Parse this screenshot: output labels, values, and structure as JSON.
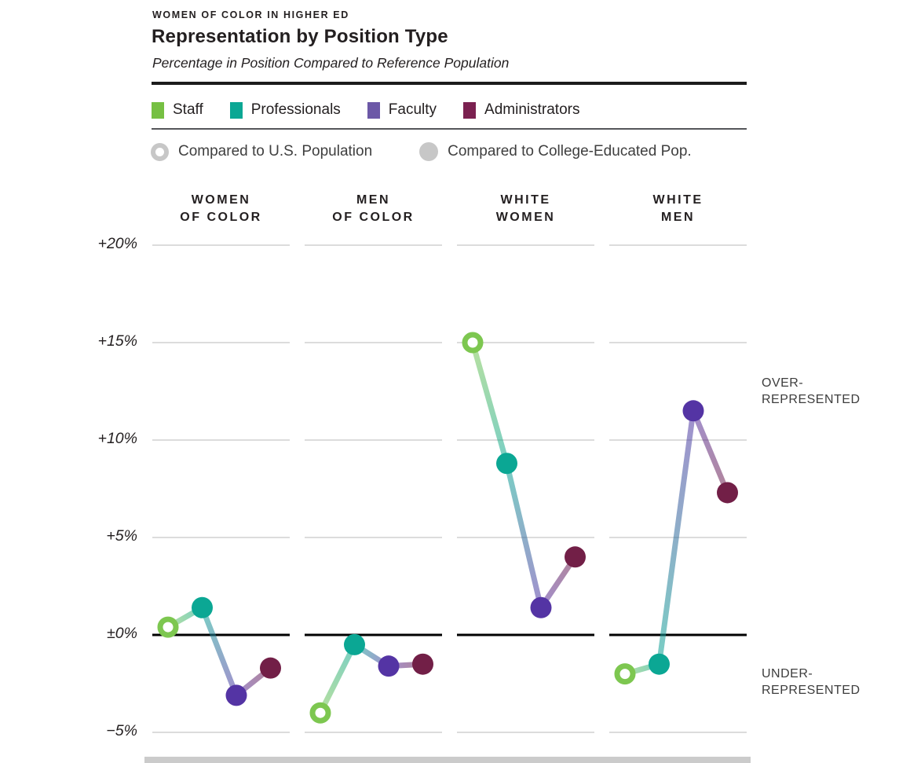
{
  "page": {
    "kicker": "WOMEN OF COLOR IN HIGHER ED",
    "title": "Representation by Position Type",
    "subtitle": "Percentage in Position Compared to Reference Population"
  },
  "legend": {
    "series": [
      {
        "label": "Staff",
        "color": "#76C043",
        "marker_color": "#7DC750"
      },
      {
        "label": "Professionals",
        "color": "#0BA794",
        "marker_color": "#0BA794"
      },
      {
        "label": "Faculty",
        "color": "#6C58A7",
        "marker_color": "#5434A4"
      },
      {
        "label": "Administrators",
        "color": "#7B2150",
        "marker_color": "#721F47"
      }
    ],
    "comparison": [
      {
        "label": "Compared to U.S. Population",
        "marker": "open",
        "color": "#C7C7C7"
      },
      {
        "label": "Compared to College-Educated Pop.",
        "marker": "filled",
        "color": "#C7C7C7"
      }
    ]
  },
  "annotations": {
    "over_line1": "OVER-",
    "over_line2": "REPRESENTED",
    "under_line1": "UNDER-",
    "under_line2": "REPRESENTED"
  },
  "chart_data": {
    "type": "line",
    "title": "Representation by Position Type",
    "subtitle": "Percentage in Position Compared to Reference Population",
    "unit": "percentage points vs. reference population",
    "positions": [
      "Staff",
      "Professionals",
      "Faculty",
      "Administrators"
    ],
    "position_comparison": [
      "us_population",
      "college_educated",
      "college_educated",
      "college_educated"
    ],
    "groups": [
      {
        "label": [
          "WOMEN",
          "OF COLOR"
        ],
        "values": [
          0.4,
          1.4,
          -3.1,
          -1.7
        ]
      },
      {
        "label": [
          "MEN",
          "OF COLOR"
        ],
        "values": [
          -4.0,
          -0.5,
          -1.6,
          -1.5
        ]
      },
      {
        "label": [
          "WHITE",
          "WOMEN"
        ],
        "values": [
          15.0,
          8.8,
          1.4,
          4.0
        ]
      },
      {
        "label": [
          "WHITE",
          "MEN"
        ],
        "values": [
          -2.0,
          -1.5,
          11.5,
          7.3
        ]
      }
    ],
    "y_ticks": [
      {
        "label": "+20%",
        "value": 20
      },
      {
        "label": "+15%",
        "value": 15
      },
      {
        "label": "+10%",
        "value": 10
      },
      {
        "label": "+5%",
        "value": 5
      },
      {
        "label": "±0%",
        "value": 0
      },
      {
        "label": "−5%",
        "value": -5
      }
    ],
    "ylim": [
      -5,
      20
    ],
    "grid": true,
    "zero_line_at": 0,
    "legend_position": "top"
  },
  "colors": {
    "text": "#231F20",
    "gridline": "#DCDCDC",
    "zero_line": "#000000",
    "rule_thick": "#1c1c1c",
    "rule_thin": "#55565A",
    "comparison_gray": "#C7C7C7"
  }
}
